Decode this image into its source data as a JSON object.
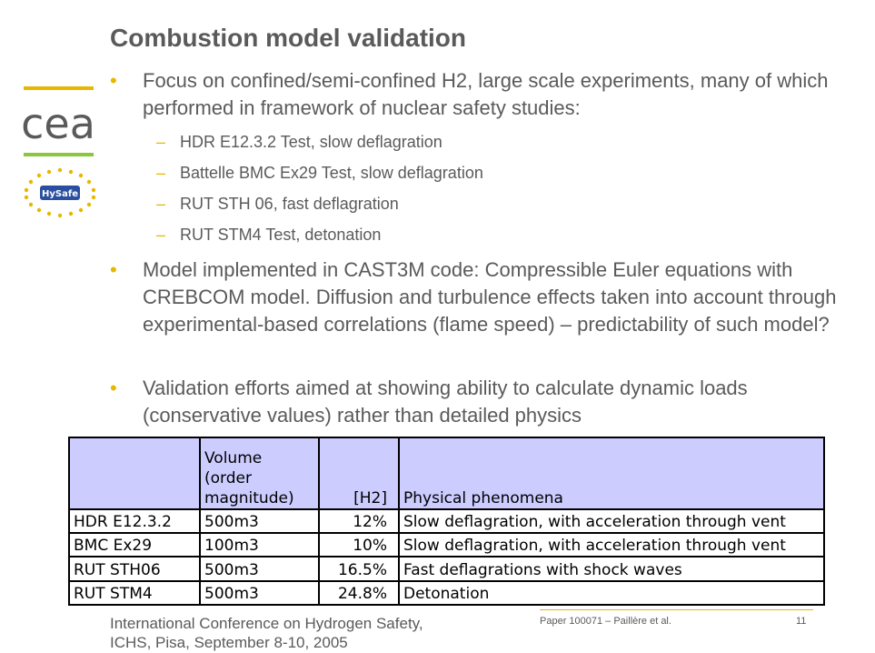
{
  "slide": {
    "title": "Combustion model validation",
    "bullets": [
      "Focus on confined/semi-confined H2, large scale experiments, many of which performed in framework of nuclear safety studies:",
      "Model implemented in CAST3M code: Compressible Euler equations with CREBCOM model. Diffusion and turbulence effects taken into account through experimental-based correlations (flame speed) – predictability of such model?",
      "Validation efforts aimed at showing ability to calculate dynamic loads (conservative values) rather than detailed physics"
    ],
    "bullet_glyph": "•",
    "sub_glyph": "–",
    "sub_items": [
      "HDR E12.3.2 Test, slow deflagration",
      "Battelle BMC Ex29 Test, slow deflagration",
      "RUT STH 06, fast deflagration",
      "RUT STM4 Test, detonation"
    ]
  },
  "logos": {
    "cea_text": "cea",
    "hysafe_text": "HySafe"
  },
  "table": {
    "header": {
      "col1": "",
      "col2_lines": [
        "Volume",
        "(order",
        "magnitude)"
      ],
      "col3": "[H2]",
      "col4": "Physical phenomena"
    },
    "rows": [
      [
        "HDR E12.3.2",
        "500m3",
        "12%",
        "Slow deflagration, with acceleration through vent"
      ],
      [
        "BMC Ex29",
        "100m3",
        "10%",
        "Slow deflagration, with acceleration through vent"
      ],
      [
        "RUT STH06",
        "500m3",
        "16.5%",
        "Fast deflagrations with shock waves"
      ],
      [
        "RUT STM4",
        "500m3",
        "24.8%",
        "Detonation"
      ]
    ]
  },
  "footer": {
    "conference_line1": "International Conference on Hydrogen Safety,",
    "conference_line2": "ICHS, Pisa, September 8-10, 2005",
    "paper": "Paper 100071 – Paillère et al.",
    "page": "11"
  },
  "colors": {
    "accent_yellow": "#e6b800",
    "accent_green": "#8cc63f",
    "table_header": "#ccccff",
    "text_gray": "#5a5a5a"
  }
}
